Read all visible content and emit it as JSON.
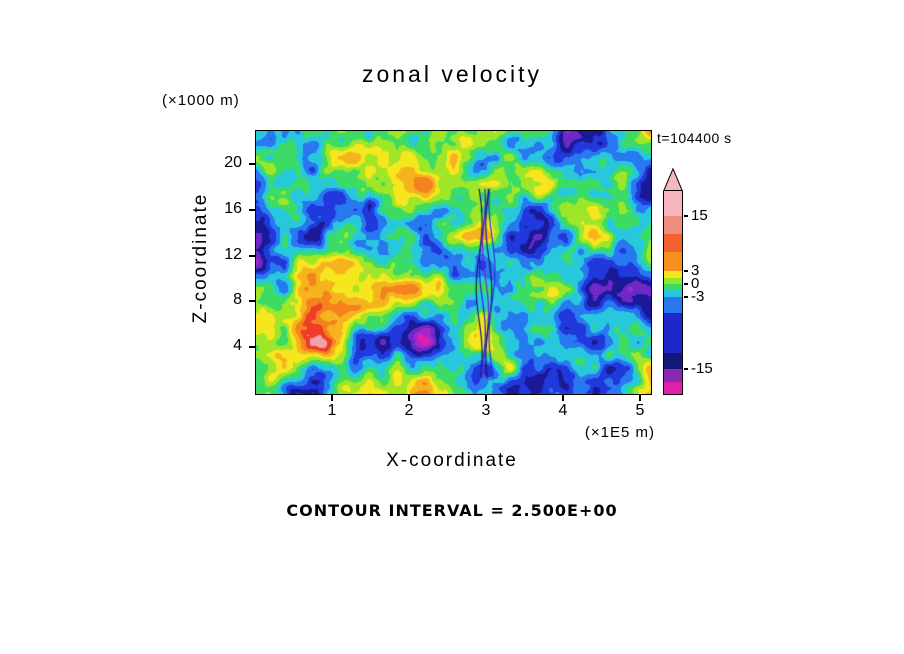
{
  "title": "zonal velocity",
  "time_label": "t=104400 s",
  "footer": "CONTOUR INTERVAL = 2.500E+00",
  "y_axis": {
    "units": "(×1000 m)",
    "title": "Z-coordinate",
    "ticks": [
      20,
      16,
      12,
      8,
      4
    ]
  },
  "x_axis": {
    "units": "(×1E5 m)",
    "title": "X-coordinate",
    "ticks": [
      1,
      2,
      3,
      4,
      5
    ]
  },
  "colorbar": {
    "tip_color": "#f5b6c0",
    "labels": [
      {
        "text": "15",
        "at": 25
      },
      {
        "text": "3",
        "at": 80
      },
      {
        "text": "0",
        "at": 93
      },
      {
        "text": "-3",
        "at": 106
      },
      {
        "text": "-15",
        "at": 178
      }
    ],
    "segments": [
      {
        "color": "#f5b6c0",
        "h": 25
      },
      {
        "color": "#ee8d7a",
        "h": 18
      },
      {
        "color": "#f2622e",
        "h": 18
      },
      {
        "color": "#f5901e",
        "h": 19
      },
      {
        "color": "#f5e61e",
        "h": 7
      },
      {
        "color": "#96e628",
        "h": 6
      },
      {
        "color": "#3cdc64",
        "h": 6
      },
      {
        "color": "#28c8dc",
        "h": 7
      },
      {
        "color": "#2878f0",
        "h": 16
      },
      {
        "color": "#1e28c8",
        "h": 40
      },
      {
        "color": "#141678",
        "h": 16
      },
      {
        "color": "#8c28b4",
        "h": 13
      },
      {
        "color": "#e020a8",
        "h": 12
      }
    ]
  },
  "chart_data": {
    "type": "heatmap",
    "subtype": "filled-contour",
    "title": "zonal velocity",
    "xlabel": "X-coordinate",
    "ylabel": "Z-coordinate",
    "x_units": "(×1E5 m)",
    "y_units": "(×1000 m)",
    "x_ticks": [
      1,
      2,
      3,
      4,
      5
    ],
    "y_ticks": [
      20,
      16,
      12,
      8,
      4
    ],
    "x_range_1e5_m": [
      0,
      5.16
    ],
    "z_range_1000_m": [
      0,
      23
    ],
    "time_s": 104400,
    "contour_interval": 2.5,
    "colorbar_labeled_levels": [
      15,
      3,
      0,
      -3,
      -15
    ],
    "value_range": [
      -17.5,
      17.5
    ],
    "levels": [
      -15,
      -12.5,
      -10,
      -7.5,
      -5,
      -2.5,
      0,
      2.5,
      5,
      7.5,
      10,
      12.5,
      15
    ],
    "palette": [
      "#e020a8",
      "#a428c8",
      "#6e28c8",
      "#1a1a96",
      "#2038dc",
      "#2878f0",
      "#28c8dc",
      "#3cdc64",
      "#a0e628",
      "#f5e61e",
      "#f5b41e",
      "#f5821e",
      "#ee3c28",
      "#f2a0aa"
    ],
    "legend_position": "right",
    "grid": false,
    "description": "Turbulent zonal-velocity cross-section; warm colors positive, cool colors negative, thin wave-breaking streaks near x=3"
  }
}
